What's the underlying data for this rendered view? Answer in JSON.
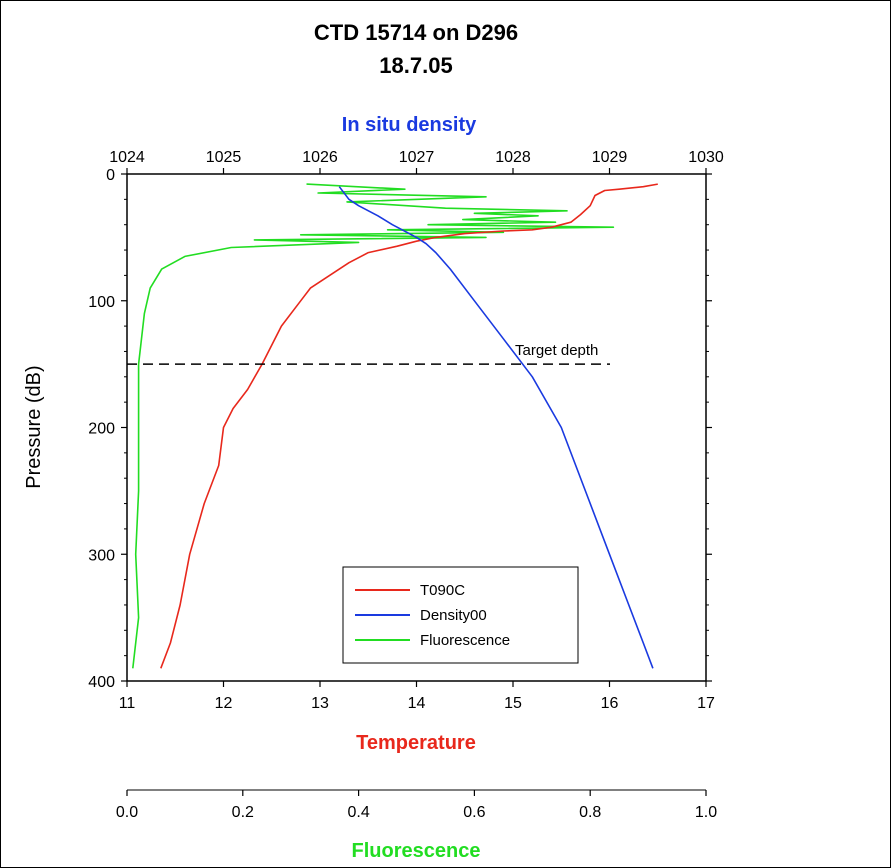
{
  "chart_data": {
    "type": "line",
    "title": "CTD 15714 on D296",
    "subtitle": "18.7.05",
    "ylabel": "Pressure (dB)",
    "ylim": [
      0,
      400
    ],
    "y_inverted": true,
    "yticks": [
      "0",
      "100",
      "200",
      "300",
      "400"
    ],
    "xaxis_bottom": {
      "label": "Temperature",
      "color": "#e8281c",
      "range": [
        11,
        17
      ],
      "ticks": [
        "11",
        "12",
        "13",
        "14",
        "15",
        "16",
        "17"
      ]
    },
    "xaxis_top": {
      "label": "In situ density",
      "color": "#1a3ae0",
      "range": [
        1024,
        1030
      ],
      "ticks": [
        "1024",
        "1025",
        "1026",
        "1027",
        "1028",
        "1029",
        "1030"
      ]
    },
    "xaxis_fluor": {
      "label": "Fluorescence",
      "color": "#22dd22",
      "range": [
        0.0,
        1.0
      ],
      "ticks": [
        "0.0",
        "0.2",
        "0.4",
        "0.6",
        "0.8",
        "1.0"
      ]
    },
    "annotation": {
      "text": "Target depth",
      "pressure": 150
    },
    "legend": {
      "placement": "bottom-right"
    },
    "series": [
      {
        "name": "T090C",
        "axis": "bottom",
        "color": "#e8281c",
        "points": [
          [
            16.5,
            8
          ],
          [
            16.35,
            10
          ],
          [
            16.1,
            12
          ],
          [
            15.95,
            13
          ],
          [
            15.85,
            17
          ],
          [
            15.8,
            25
          ],
          [
            15.7,
            32
          ],
          [
            15.6,
            38
          ],
          [
            15.4,
            42
          ],
          [
            15.2,
            44
          ],
          [
            14.9,
            45
          ],
          [
            14.5,
            47
          ],
          [
            14.2,
            50
          ],
          [
            14.0,
            53
          ],
          [
            13.8,
            57
          ],
          [
            13.5,
            62
          ],
          [
            13.3,
            70
          ],
          [
            13.1,
            80
          ],
          [
            12.9,
            90
          ],
          [
            12.8,
            100
          ],
          [
            12.6,
            120
          ],
          [
            12.4,
            150
          ],
          [
            12.25,
            170
          ],
          [
            12.1,
            185
          ],
          [
            12.0,
            200
          ],
          [
            11.95,
            230
          ],
          [
            11.8,
            260
          ],
          [
            11.65,
            300
          ],
          [
            11.55,
            340
          ],
          [
            11.45,
            370
          ],
          [
            11.35,
            390
          ]
        ]
      },
      {
        "name": "Density00",
        "axis": "top",
        "color": "#1a3ae0",
        "points": [
          [
            1026.2,
            10
          ],
          [
            1026.3,
            20
          ],
          [
            1026.4,
            25
          ],
          [
            1026.6,
            33
          ],
          [
            1026.75,
            40
          ],
          [
            1026.9,
            46
          ],
          [
            1027.0,
            50
          ],
          [
            1027.1,
            55
          ],
          [
            1027.2,
            62
          ],
          [
            1027.35,
            75
          ],
          [
            1027.6,
            100
          ],
          [
            1027.9,
            130
          ],
          [
            1028.2,
            160
          ],
          [
            1028.5,
            200
          ],
          [
            1028.75,
            250
          ],
          [
            1029.0,
            300
          ],
          [
            1029.2,
            340
          ],
          [
            1029.35,
            370
          ],
          [
            1029.45,
            390
          ]
        ]
      },
      {
        "name": "Fluorescence",
        "axis": "fluor",
        "color": "#22dd22",
        "points": [
          [
            0.31,
            8
          ],
          [
            0.48,
            12
          ],
          [
            0.33,
            15
          ],
          [
            0.62,
            18
          ],
          [
            0.38,
            22
          ],
          [
            0.55,
            27
          ],
          [
            0.76,
            29
          ],
          [
            0.6,
            31
          ],
          [
            0.71,
            33
          ],
          [
            0.58,
            36
          ],
          [
            0.74,
            38
          ],
          [
            0.52,
            40
          ],
          [
            0.84,
            42
          ],
          [
            0.45,
            44
          ],
          [
            0.65,
            46
          ],
          [
            0.3,
            48
          ],
          [
            0.62,
            50
          ],
          [
            0.22,
            52
          ],
          [
            0.4,
            54
          ],
          [
            0.18,
            58
          ],
          [
            0.1,
            65
          ],
          [
            0.06,
            75
          ],
          [
            0.04,
            90
          ],
          [
            0.03,
            110
          ],
          [
            0.02,
            150
          ],
          [
            0.02,
            200
          ],
          [
            0.02,
            250
          ],
          [
            0.015,
            300
          ],
          [
            0.02,
            350
          ],
          [
            0.01,
            390
          ]
        ]
      }
    ]
  }
}
